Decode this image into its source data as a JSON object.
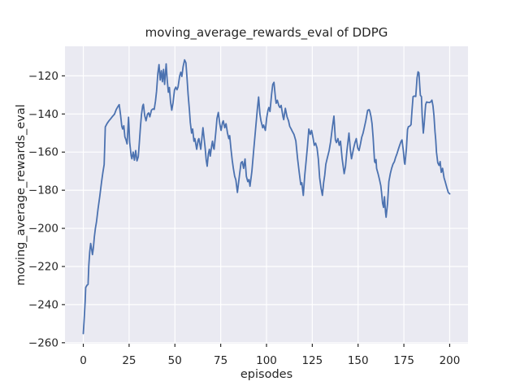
{
  "figure": {
    "background": "#ffffff"
  },
  "chart_data": {
    "type": "line",
    "title": "moving_average_rewards_eval of DDPG",
    "xlabel": "episodes",
    "ylabel": "moving_average_rewards_eval",
    "x_ticks": [
      0,
      25,
      50,
      75,
      100,
      125,
      150,
      175,
      200
    ],
    "y_ticks": [
      -120,
      -140,
      -160,
      -180,
      -200,
      -220,
      -240,
      -260
    ],
    "xlim": [
      -10,
      210
    ],
    "ylim": [
      -260.5,
      -104.5
    ],
    "grid": true,
    "legend": null,
    "style": {
      "axes_background": "#eaeaf2",
      "grid_color": "#ffffff",
      "line_color": "#4c72b0",
      "text_color": "#262626",
      "tick_color": "#262626"
    },
    "series": [
      {
        "name": "moving_average_rewards_eval",
        "color": "#4c72b0",
        "points": [
          [
            0,
            -255.2
          ],
          [
            0.5,
            -247
          ],
          [
            1,
            -238.5
          ],
          [
            1.3,
            -231
          ],
          [
            2,
            -229.8
          ],
          [
            2.6,
            -229.4
          ],
          [
            3,
            -219.5
          ],
          [
            3.5,
            -212.5
          ],
          [
            4,
            -207.9
          ],
          [
            4.5,
            -210.6
          ],
          [
            5,
            -213.8
          ],
          [
            5.5,
            -210.4
          ],
          [
            6,
            -204.6
          ],
          [
            6.6,
            -200
          ],
          [
            7.2,
            -196.5
          ],
          [
            8,
            -190
          ],
          [
            9,
            -183.2
          ],
          [
            10,
            -175.3
          ],
          [
            10.7,
            -170.5
          ],
          [
            11.4,
            -166.5
          ],
          [
            12,
            -146.8
          ],
          [
            13,
            -144.9
          ],
          [
            14,
            -143.6
          ],
          [
            15,
            -142.4
          ],
          [
            16,
            -141.2
          ],
          [
            17,
            -140.1
          ],
          [
            18,
            -137.6
          ],
          [
            19,
            -135.9
          ],
          [
            19.6,
            -135.1
          ],
          [
            20.3,
            -140.2
          ],
          [
            21,
            -146.4
          ],
          [
            21.5,
            -147.9
          ],
          [
            22.1,
            -146.2
          ],
          [
            22.7,
            -152
          ],
          [
            23.3,
            -153.6
          ],
          [
            23.9,
            -155.7
          ],
          [
            24.7,
            -141.7
          ],
          [
            25.3,
            -154.8
          ],
          [
            26.1,
            -161.9
          ],
          [
            26.5,
            -163.5
          ],
          [
            27.2,
            -160
          ],
          [
            27.9,
            -164.2
          ],
          [
            28.6,
            -159.2
          ],
          [
            29.3,
            -164.6
          ],
          [
            30,
            -162.4
          ],
          [
            30.6,
            -155
          ],
          [
            31.2,
            -146.5
          ],
          [
            31.8,
            -140.1
          ],
          [
            32.4,
            -135.8
          ],
          [
            32.8,
            -134.9
          ],
          [
            33.5,
            -140.8
          ],
          [
            34.2,
            -143.6
          ],
          [
            35,
            -140.1
          ],
          [
            35.7,
            -139.4
          ],
          [
            36.3,
            -141.5
          ],
          [
            37.2,
            -138
          ],
          [
            38,
            -137.3
          ],
          [
            38.7,
            -137.6
          ],
          [
            39.4,
            -133.1
          ],
          [
            40,
            -128
          ],
          [
            40.7,
            -118.6
          ],
          [
            41.3,
            -114.1
          ],
          [
            42,
            -122.2
          ],
          [
            42.6,
            -117.3
          ],
          [
            43.2,
            -123.1
          ],
          [
            43.8,
            -116.6
          ],
          [
            44.4,
            -124.5
          ],
          [
            45.2,
            -113.7
          ],
          [
            45.8,
            -122.2
          ],
          [
            46.4,
            -128.6
          ],
          [
            47,
            -126.1
          ],
          [
            47.6,
            -133.6
          ],
          [
            48.3,
            -138
          ],
          [
            49,
            -134.1
          ],
          [
            49.8,
            -127.3
          ],
          [
            50.5,
            -125.9
          ],
          [
            51.1,
            -127.3
          ],
          [
            51.7,
            -125.9
          ],
          [
            52.6,
            -120.1
          ],
          [
            53.2,
            -118.1
          ],
          [
            53.8,
            -120.3
          ],
          [
            54.5,
            -115.1
          ],
          [
            55.3,
            -111.6
          ],
          [
            56,
            -113.1
          ],
          [
            56.6,
            -121.2
          ],
          [
            57.2,
            -129.6
          ],
          [
            57.9,
            -137.8
          ],
          [
            58.4,
            -144.4
          ],
          [
            59.1,
            -150
          ],
          [
            59.7,
            -147.9
          ],
          [
            60.4,
            -154.3
          ],
          [
            60.9,
            -152.9
          ],
          [
            61.9,
            -158.5
          ],
          [
            62.7,
            -153.6
          ],
          [
            63.1,
            -152.9
          ],
          [
            64.1,
            -158.5
          ],
          [
            65.3,
            -147.2
          ],
          [
            66.1,
            -154.3
          ],
          [
            66.5,
            -157.8
          ],
          [
            67.1,
            -164.2
          ],
          [
            67.6,
            -167.4
          ],
          [
            68.3,
            -160.7
          ],
          [
            68.8,
            -158.5
          ],
          [
            69.3,
            -162.1
          ],
          [
            70.1,
            -156.4
          ],
          [
            70.5,
            -154.3
          ],
          [
            71.1,
            -157.8
          ],
          [
            71.4,
            -158.5
          ],
          [
            72.3,
            -150
          ],
          [
            73,
            -142.2
          ],
          [
            73.7,
            -139.2
          ],
          [
            74.5,
            -145.1
          ],
          [
            75.2,
            -148.6
          ],
          [
            76,
            -144.4
          ],
          [
            76.4,
            -143.6
          ],
          [
            77.2,
            -147.2
          ],
          [
            77.9,
            -145.1
          ],
          [
            78.7,
            -150
          ],
          [
            79.4,
            -152.9
          ],
          [
            79.9,
            -151.4
          ],
          [
            80.6,
            -158.5
          ],
          [
            81.3,
            -164.2
          ],
          [
            81.9,
            -168.5
          ],
          [
            82.6,
            -172.6
          ],
          [
            83.3,
            -174.6
          ],
          [
            84.1,
            -181.2
          ],
          [
            85.3,
            -171.5
          ],
          [
            86.1,
            -165.6
          ],
          [
            86.8,
            -165
          ],
          [
            87.5,
            -168.5
          ],
          [
            88.3,
            -163.6
          ],
          [
            89,
            -172.7
          ],
          [
            89.8,
            -175.5
          ],
          [
            90.4,
            -174.4
          ],
          [
            91,
            -177.9
          ],
          [
            92,
            -170.1
          ],
          [
            93,
            -159.2
          ],
          [
            94,
            -148.2
          ],
          [
            95,
            -137.6
          ],
          [
            95.7,
            -131.1
          ],
          [
            96.4,
            -140.1
          ],
          [
            97,
            -143.6
          ],
          [
            97.9,
            -147.2
          ],
          [
            98.4,
            -145.8
          ],
          [
            99.4,
            -148.6
          ],
          [
            100.1,
            -142.2
          ],
          [
            100.8,
            -138
          ],
          [
            101.3,
            -136.6
          ],
          [
            101.9,
            -138.7
          ],
          [
            102.8,
            -129.5
          ],
          [
            103.4,
            -124.5
          ],
          [
            104.1,
            -123.4
          ],
          [
            104.9,
            -131.6
          ],
          [
            105.3,
            -134.4
          ],
          [
            105.9,
            -132.8
          ],
          [
            106.8,
            -135.8
          ],
          [
            107.3,
            -136.6
          ],
          [
            108,
            -135.5
          ],
          [
            109,
            -141.5
          ],
          [
            109.4,
            -143
          ],
          [
            110.3,
            -137
          ],
          [
            111.2,
            -141.5
          ],
          [
            112,
            -143.6
          ],
          [
            112.7,
            -146.5
          ],
          [
            113.5,
            -147.9
          ],
          [
            114.2,
            -149.3
          ],
          [
            115,
            -150.7
          ],
          [
            116,
            -154.1
          ],
          [
            117,
            -163.6
          ],
          [
            117.9,
            -171.1
          ],
          [
            118.7,
            -177.1
          ],
          [
            119.3,
            -176.1
          ],
          [
            120.1,
            -182.7
          ],
          [
            120.9,
            -172
          ],
          [
            121.6,
            -165
          ],
          [
            122.4,
            -156.6
          ],
          [
            123.1,
            -147.9
          ],
          [
            123.9,
            -150.7
          ],
          [
            124.6,
            -148.6
          ],
          [
            125.4,
            -152.6
          ],
          [
            126.1,
            -156.4
          ],
          [
            126.8,
            -155.3
          ],
          [
            127.6,
            -157.8
          ],
          [
            128.3,
            -163.6
          ],
          [
            129,
            -173.4
          ],
          [
            129.8,
            -179.1
          ],
          [
            130.5,
            -182.7
          ],
          [
            131.2,
            -176.1
          ],
          [
            131.8,
            -172
          ],
          [
            132.4,
            -166.4
          ],
          [
            133.1,
            -163.5
          ],
          [
            134.2,
            -159.2
          ],
          [
            135,
            -154.6
          ],
          [
            136,
            -146.6
          ],
          [
            136.8,
            -141.1
          ],
          [
            137.6,
            -153.6
          ],
          [
            138.2,
            -155
          ],
          [
            139,
            -152.9
          ],
          [
            139.7,
            -156.4
          ],
          [
            140.4,
            -154.3
          ],
          [
            141.3,
            -163.5
          ],
          [
            142.4,
            -171.3
          ],
          [
            143.1,
            -167.6
          ],
          [
            143.9,
            -159.2
          ],
          [
            145,
            -150
          ],
          [
            145.8,
            -159.2
          ],
          [
            146.4,
            -163.5
          ],
          [
            147.6,
            -157.8
          ],
          [
            148.3,
            -155
          ],
          [
            149,
            -152.9
          ],
          [
            149.8,
            -157.8
          ],
          [
            150.5,
            -159.2
          ],
          [
            151.3,
            -155.6
          ],
          [
            152,
            -152.2
          ],
          [
            152.7,
            -150.1
          ],
          [
            153.4,
            -147.1
          ],
          [
            154.2,
            -143.6
          ],
          [
            155.2,
            -138.1
          ],
          [
            156,
            -137.7
          ],
          [
            156.4,
            -138.6
          ],
          [
            157.1,
            -141.6
          ],
          [
            157.6,
            -145.1
          ],
          [
            158.2,
            -152.2
          ],
          [
            159,
            -164.9
          ],
          [
            159.4,
            -165.6
          ],
          [
            159.8,
            -163.9
          ],
          [
            160.1,
            -168.5
          ],
          [
            160.9,
            -171.3
          ],
          [
            161.6,
            -174.1
          ],
          [
            162.4,
            -177.7
          ],
          [
            162.8,
            -181.2
          ],
          [
            163.4,
            -186.9
          ],
          [
            163.9,
            -189
          ],
          [
            164.4,
            -183.4
          ],
          [
            165,
            -191.6
          ],
          [
            165.3,
            -194.2
          ],
          [
            166.1,
            -186.9
          ],
          [
            166.8,
            -175.5
          ],
          [
            167.6,
            -171.3
          ],
          [
            168.3,
            -168.5
          ],
          [
            169,
            -166.4
          ],
          [
            169.8,
            -165
          ],
          [
            170.5,
            -162.8
          ],
          [
            171.3,
            -160.7
          ],
          [
            172,
            -158.5
          ],
          [
            172.7,
            -156.4
          ],
          [
            173.5,
            -154.3
          ],
          [
            174,
            -153.6
          ],
          [
            174.7,
            -159.2
          ],
          [
            175.3,
            -165.6
          ],
          [
            175.6,
            -166.4
          ],
          [
            176.4,
            -158.1
          ],
          [
            177,
            -148.1
          ],
          [
            177.5,
            -146.6
          ],
          [
            178.2,
            -146.4
          ],
          [
            178.9,
            -145.6
          ],
          [
            179.4,
            -138.6
          ],
          [
            180,
            -130.9
          ],
          [
            180.7,
            -130.6
          ],
          [
            181.5,
            -130.8
          ],
          [
            182.2,
            -121.1
          ],
          [
            182.7,
            -117.9
          ],
          [
            183.2,
            -118.4
          ],
          [
            183.7,
            -125.9
          ],
          [
            184,
            -130.2
          ],
          [
            184.6,
            -130.9
          ],
          [
            185,
            -140.8
          ],
          [
            185.6,
            -150
          ],
          [
            186.1,
            -145.1
          ],
          [
            186.6,
            -138.7
          ],
          [
            186.9,
            -135.1
          ],
          [
            187.4,
            -133.7
          ],
          [
            188.2,
            -133.9
          ],
          [
            189,
            -134
          ],
          [
            189.7,
            -133.6
          ],
          [
            190.3,
            -132.7
          ],
          [
            190.9,
            -135.8
          ],
          [
            191.4,
            -140.8
          ],
          [
            192,
            -149.3
          ],
          [
            192.4,
            -153.6
          ],
          [
            192.8,
            -160
          ],
          [
            193.5,
            -165.6
          ],
          [
            194.2,
            -167
          ],
          [
            194.8,
            -165
          ],
          [
            195.4,
            -170.6
          ],
          [
            196.1,
            -168.5
          ],
          [
            196.9,
            -173.4
          ],
          [
            197.6,
            -175.6
          ],
          [
            198.4,
            -178.4
          ],
          [
            199.2,
            -181.1
          ],
          [
            200,
            -181.9
          ]
        ]
      }
    ]
  }
}
